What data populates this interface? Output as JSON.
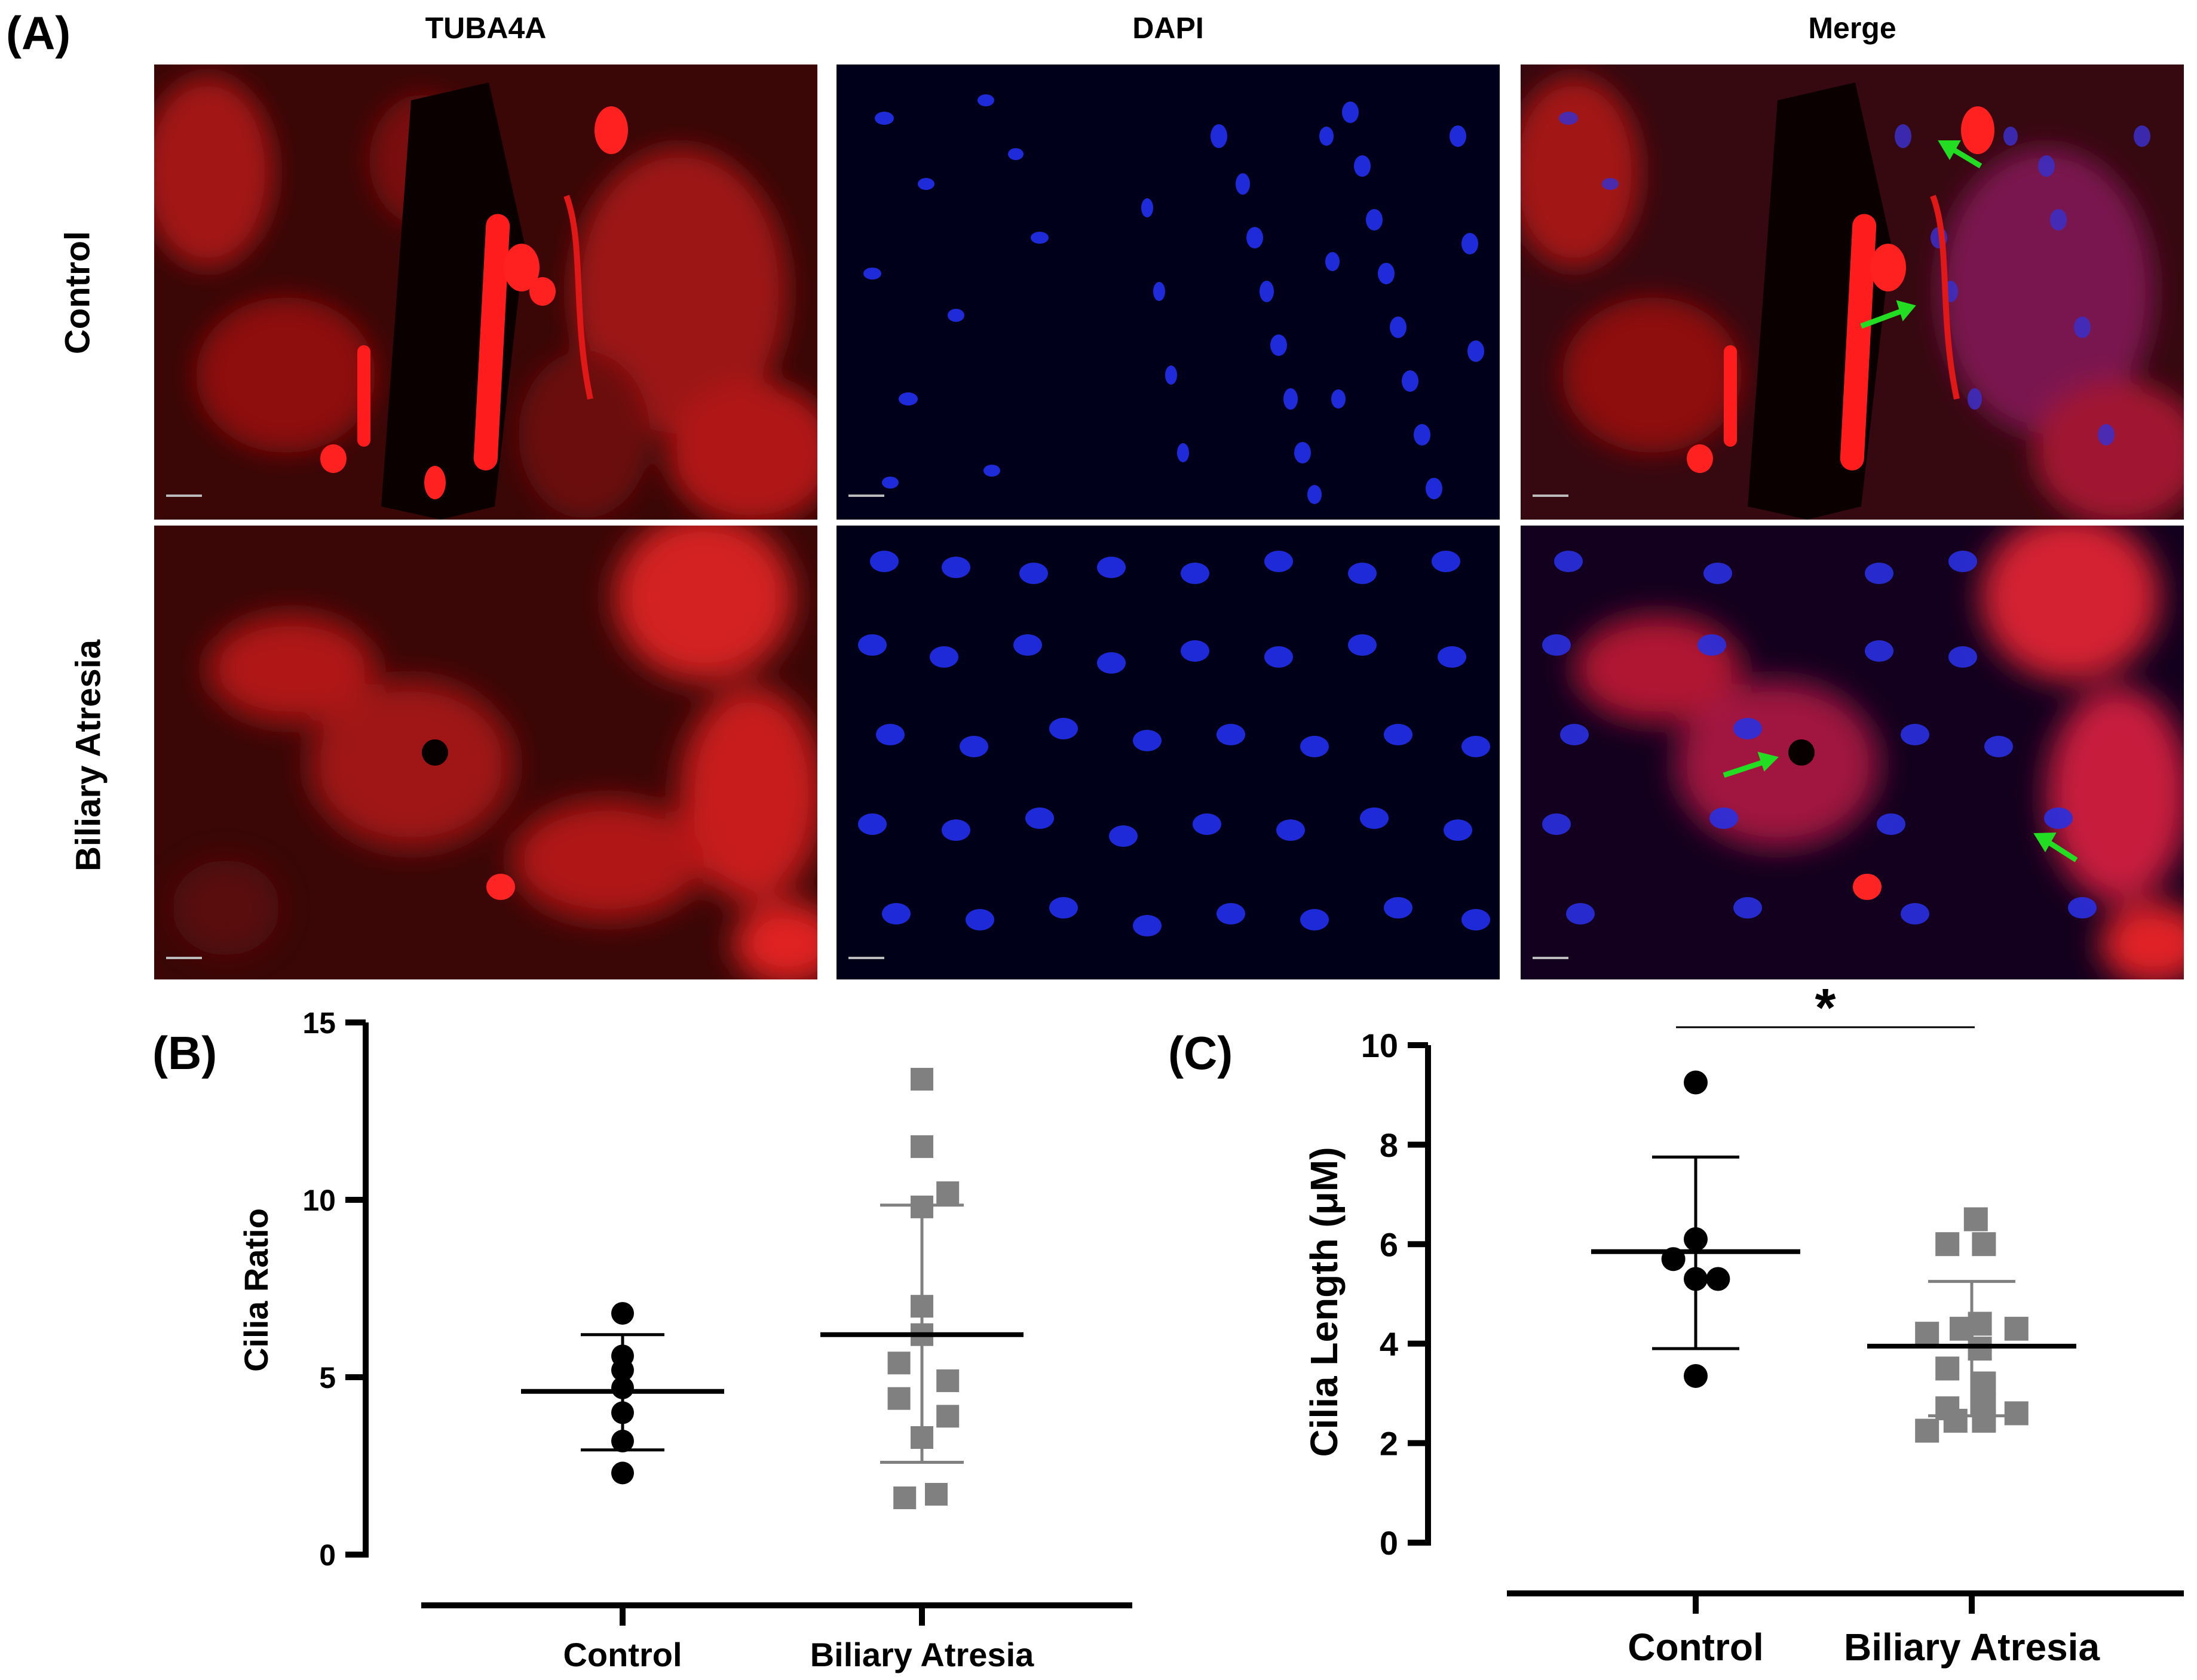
{
  "panel_a": {
    "label": "(A)",
    "columns": [
      "TUBA4A",
      "DAPI",
      "Merge"
    ],
    "rows": [
      "Control",
      "Biliary  Atresia"
    ]
  },
  "panel_b": {
    "label": "(B)"
  },
  "panel_c": {
    "label": "(C)",
    "significance": "*"
  },
  "chart_data": [
    {
      "id": "B",
      "type": "scatter",
      "ylabel": "Cilia Ratio",
      "xlabel": "",
      "ylim": [
        0,
        15
      ],
      "yticks": [
        0,
        5,
        10,
        15
      ],
      "categories": [
        "Control",
        "Biliary Atresia"
      ],
      "series": [
        {
          "category": "Control",
          "marker": "circle",
          "color": "#000000",
          "values": [
            6.8,
            5.6,
            5.2,
            4.7,
            4.0,
            3.2,
            2.3
          ],
          "mean": 4.6,
          "sd_upper": 6.2,
          "sd_lower": 2.95
        },
        {
          "category": "Biliary Atresia",
          "marker": "square",
          "color": "#808080",
          "points": [
            [
              0,
              13.4
            ],
            [
              0,
              11.5
            ],
            [
              0,
              9.8
            ],
            [
              0.9,
              10.2
            ],
            [
              0,
              7.0
            ],
            [
              0,
              6.2
            ],
            [
              -0.8,
              5.4
            ],
            [
              0.9,
              4.9
            ],
            [
              -0.8,
              4.4
            ],
            [
              0.9,
              3.9
            ],
            [
              0,
              3.3
            ],
            [
              -0.6,
              1.6
            ],
            [
              0.5,
              1.7
            ]
          ],
          "mean": 6.2,
          "sd_upper": 9.85,
          "sd_lower": 2.6
        }
      ]
    },
    {
      "id": "C",
      "type": "scatter",
      "ylabel": "Cilia Length (μM)",
      "xlabel": "",
      "ylim": [
        0,
        10
      ],
      "yticks": [
        0,
        2,
        4,
        6,
        8,
        10
      ],
      "categories": [
        "Control",
        "Biliary Atresia"
      ],
      "series": [
        {
          "category": "Control",
          "marker": "circle",
          "color": "#000000",
          "points": [
            [
              0,
              9.25
            ],
            [
              0,
              6.1
            ],
            [
              -0.55,
              5.7
            ],
            [
              0,
              5.3
            ],
            [
              0.55,
              5.3
            ],
            [
              0,
              3.35
            ]
          ],
          "mean": 5.85,
          "sd_upper": 7.75,
          "sd_lower": 3.9
        },
        {
          "category": "Biliary Atresia",
          "marker": "square",
          "color": "#808080",
          "points": [
            [
              -0.6,
              6.0
            ],
            [
              0.1,
              6.5
            ],
            [
              0.3,
              6.0
            ],
            [
              -1.1,
              4.2
            ],
            [
              -0.25,
              4.3
            ],
            [
              0.2,
              4.4
            ],
            [
              1.1,
              4.3
            ],
            [
              -0.6,
              3.5
            ],
            [
              0.2,
              3.9
            ],
            [
              0.3,
              3.2
            ],
            [
              -0.6,
              2.7
            ],
            [
              0.3,
              2.75
            ],
            [
              -0.4,
              2.45
            ],
            [
              0.3,
              2.45
            ],
            [
              1.1,
              2.6
            ],
            [
              -1.1,
              2.25
            ]
          ],
          "mean": 3.95,
          "sd_upper": 5.25,
          "sd_lower": 2.55
        }
      ]
    }
  ]
}
